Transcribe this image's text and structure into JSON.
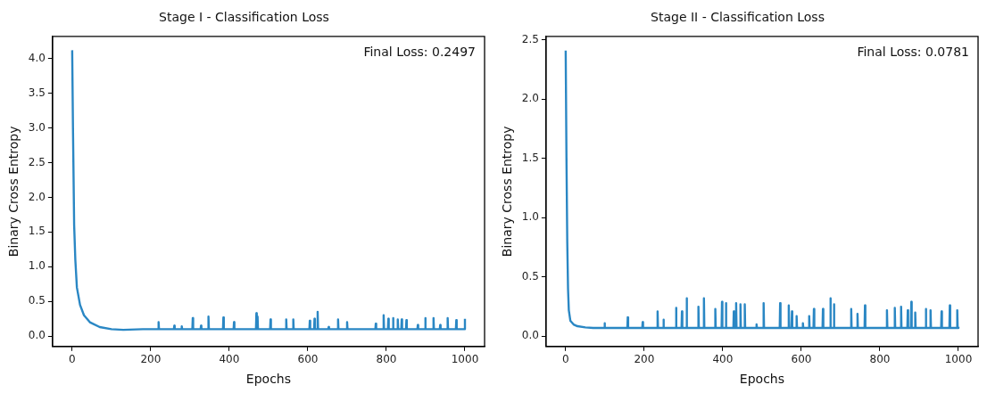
{
  "chart_data": [
    {
      "type": "line",
      "title": "Stage I - Classification Loss",
      "xlabel": "Epochs",
      "ylabel": "Binary Cross Entropy",
      "annotations": [
        "Final Loss: 0.2497"
      ],
      "xlim": [
        -50,
        1050
      ],
      "xticks": [
        0,
        200,
        400,
        600,
        800,
        1000
      ],
      "ylim": [
        -0.15,
        4.32
      ],
      "yticks": [
        {
          "value": 0,
          "label": "0.0"
        },
        {
          "value": 0.5,
          "label": "0.5"
        },
        {
          "value": 1,
          "label": "1.0"
        },
        {
          "value": 1.5,
          "label": "1.5"
        },
        {
          "value": 2,
          "label": "2.0"
        },
        {
          "value": 2.5,
          "label": "2.5"
        },
        {
          "value": 3,
          "label": "3.0"
        },
        {
          "value": 3.5,
          "label": "3.5"
        },
        {
          "value": 4,
          "label": "4.0"
        }
      ],
      "grid": false,
      "legend": false,
      "marker": "none",
      "line_style": "solid",
      "series": [
        {
          "color": "#2a87c4",
          "x": [
            0,
            2,
            5,
            8,
            12,
            20,
            30,
            45,
            70,
            100,
            130,
            180,
            219,
            220,
            221,
            259,
            260,
            261,
            278,
            279,
            280,
            306,
            307,
            308,
            327,
            328,
            329,
            346,
            347,
            348,
            384,
            385,
            386,
            411,
            412,
            413,
            468,
            469,
            470,
            471,
            472,
            473,
            504,
            505,
            506,
            544,
            545,
            546,
            562,
            563,
            564,
            604,
            605,
            606,
            616,
            617,
            618,
            624,
            625,
            626,
            652,
            653,
            654,
            676,
            677,
            678,
            699,
            700,
            701,
            740,
            772,
            773,
            774,
            792,
            793,
            794,
            804,
            805,
            806,
            816,
            817,
            818,
            828,
            829,
            830,
            838,
            839,
            840,
            850,
            851,
            852,
            879,
            880,
            881,
            898,
            899,
            900,
            919,
            920,
            921,
            936,
            937,
            938,
            955,
            956,
            957,
            977,
            978,
            979,
            999,
            1000
          ],
          "values": [
            4.12,
            3.0,
            1.6,
            1.1,
            0.7,
            0.45,
            0.3,
            0.2,
            0.13,
            0.1,
            0.09,
            0.1,
            0.1,
            0.2,
            0.1,
            0.1,
            0.15,
            0.1,
            0.1,
            0.14,
            0.1,
            0.1,
            0.26,
            0.1,
            0.1,
            0.15,
            0.1,
            0.1,
            0.28,
            0.1,
            0.1,
            0.27,
            0.1,
            0.1,
            0.2,
            0.1,
            0.1,
            0.33,
            0.1,
            0.1,
            0.28,
            0.1,
            0.1,
            0.24,
            0.1,
            0.1,
            0.24,
            0.1,
            0.1,
            0.24,
            0.1,
            0.1,
            0.22,
            0.1,
            0.1,
            0.25,
            0.1,
            0.1,
            0.35,
            0.1,
            0.1,
            0.13,
            0.1,
            0.1,
            0.24,
            0.1,
            0.1,
            0.2,
            0.1,
            0.1,
            0.1,
            0.18,
            0.1,
            0.1,
            0.3,
            0.1,
            0.1,
            0.25,
            0.1,
            0.1,
            0.26,
            0.1,
            0.1,
            0.24,
            0.1,
            0.1,
            0.24,
            0.1,
            0.1,
            0.23,
            0.1,
            0.1,
            0.16,
            0.1,
            0.1,
            0.26,
            0.1,
            0.1,
            0.26,
            0.1,
            0.1,
            0.16,
            0.1,
            0.1,
            0.26,
            0.1,
            0.1,
            0.23,
            0.1,
            0.1,
            0.25
          ]
        }
      ]
    },
    {
      "type": "line",
      "title": "Stage II - Classification Loss",
      "xlabel": "Epochs",
      "ylabel": "Binary Cross Entropy",
      "annotations": [
        "Final Loss: 0.0781"
      ],
      "xlim": [
        -50,
        1050
      ],
      "xticks": [
        0,
        200,
        400,
        600,
        800,
        1000
      ],
      "ylim": [
        -0.086,
        2.53
      ],
      "yticks": [
        {
          "value": 0,
          "label": "0.0"
        },
        {
          "value": 0.5,
          "label": "0.5"
        },
        {
          "value": 1,
          "label": "1.0"
        },
        {
          "value": 1.5,
          "label": "1.5"
        },
        {
          "value": 2,
          "label": "2.0"
        },
        {
          "value": 2.5,
          "label": "2.5"
        }
      ],
      "grid": false,
      "legend": false,
      "marker": "none",
      "line_style": "solid",
      "series": [
        {
          "color": "#2a87c4",
          "x": [
            0,
            2,
            4,
            6,
            8,
            12,
            20,
            30,
            50,
            70,
            98,
            99,
            100,
            157,
            158,
            159,
            195,
            196,
            197,
            233,
            234,
            235,
            248,
            249,
            250,
            280,
            281,
            282,
            295,
            296,
            297,
            307,
            308,
            309,
            337,
            338,
            339,
            351,
            352,
            353,
            380,
            381,
            382,
            397,
            398,
            399,
            407,
            408,
            409,
            427,
            428,
            429,
            433,
            434,
            435,
            444,
            445,
            446,
            455,
            456,
            457,
            485,
            486,
            487,
            503,
            504,
            505,
            545,
            546,
            547,
            567,
            568,
            569,
            575,
            576,
            577,
            587,
            588,
            589,
            603,
            604,
            605,
            619,
            620,
            621,
            631,
            632,
            633,
            654,
            655,
            656,
            673,
            674,
            675,
            682,
            683,
            684,
            726,
            727,
            728,
            742,
            743,
            744,
            761,
            762,
            763,
            817,
            818,
            819,
            837,
            838,
            839,
            853,
            854,
            855,
            870,
            871,
            872,
            879,
            880,
            881,
            889,
            890,
            891,
            916,
            917,
            918,
            928,
            929,
            930,
            956,
            957,
            958,
            977,
            978,
            979,
            996,
            997,
            998,
            1000
          ],
          "values": [
            2.41,
            1.5,
            0.8,
            0.4,
            0.22,
            0.13,
            0.1,
            0.085,
            0.075,
            0.07,
            0.07,
            0.11,
            0.07,
            0.07,
            0.16,
            0.07,
            0.07,
            0.12,
            0.07,
            0.07,
            0.21,
            0.07,
            0.07,
            0.14,
            0.07,
            0.07,
            0.24,
            0.07,
            0.07,
            0.21,
            0.07,
            0.07,
            0.32,
            0.07,
            0.07,
            0.25,
            0.07,
            0.07,
            0.32,
            0.07,
            0.07,
            0.23,
            0.07,
            0.07,
            0.29,
            0.07,
            0.07,
            0.28,
            0.07,
            0.07,
            0.21,
            0.07,
            0.07,
            0.28,
            0.07,
            0.07,
            0.27,
            0.07,
            0.07,
            0.27,
            0.07,
            0.07,
            0.1,
            0.07,
            0.07,
            0.28,
            0.07,
            0.07,
            0.28,
            0.07,
            0.07,
            0.26,
            0.07,
            0.07,
            0.21,
            0.07,
            0.07,
            0.17,
            0.07,
            0.07,
            0.11,
            0.07,
            0.07,
            0.17,
            0.07,
            0.07,
            0.23,
            0.07,
            0.07,
            0.23,
            0.07,
            0.07,
            0.32,
            0.07,
            0.07,
            0.27,
            0.07,
            0.07,
            0.23,
            0.07,
            0.07,
            0.19,
            0.07,
            0.07,
            0.26,
            0.07,
            0.07,
            0.22,
            0.07,
            0.07,
            0.24,
            0.07,
            0.07,
            0.25,
            0.07,
            0.07,
            0.22,
            0.07,
            0.07,
            0.29,
            0.07,
            0.07,
            0.2,
            0.07,
            0.07,
            0.23,
            0.07,
            0.07,
            0.22,
            0.07,
            0.07,
            0.21,
            0.07,
            0.07,
            0.26,
            0.07,
            0.07,
            0.22,
            0.07,
            0.08
          ]
        }
      ]
    }
  ]
}
